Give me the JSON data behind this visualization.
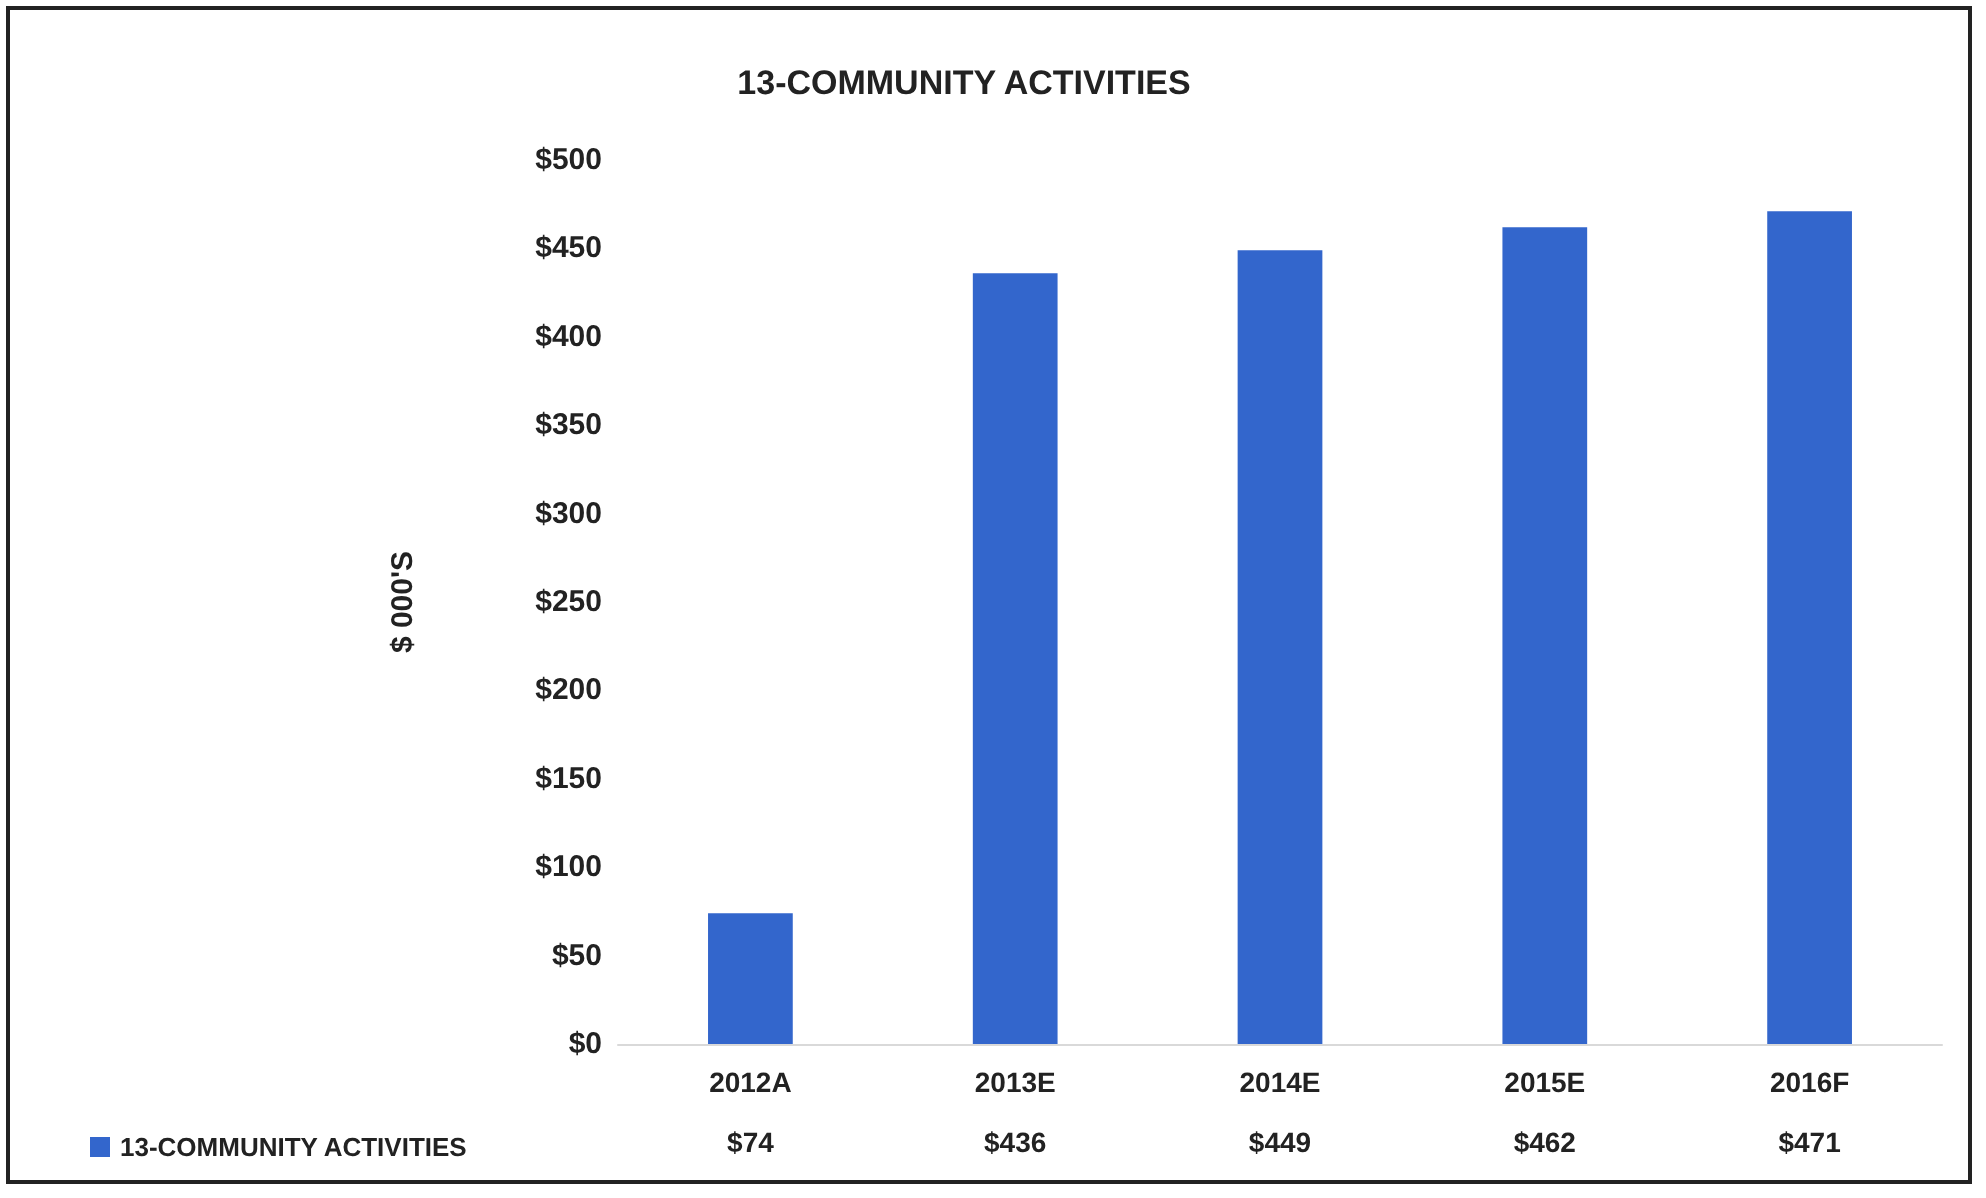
{
  "chart_data": {
    "type": "bar",
    "title": "13-COMMUNITY ACTIVITIES",
    "ylabel": "$ 000'S",
    "categories": [
      "2012A",
      "2013E",
      "2014E",
      "2015E",
      "2016F"
    ],
    "series": [
      {
        "name": "13-COMMUNITY ACTIVITIES",
        "color": "#3366cc",
        "values": [
          74,
          436,
          449,
          462,
          471
        ],
        "value_labels": [
          "$74",
          "$436",
          "$449",
          "$462",
          "$471"
        ]
      }
    ],
    "ylim": [
      0,
      500
    ],
    "yticks": [
      {
        "value": 0,
        "label": "$0"
      },
      {
        "value": 50,
        "label": "$50"
      },
      {
        "value": 100,
        "label": "$100"
      },
      {
        "value": 150,
        "label": "$150"
      },
      {
        "value": 200,
        "label": "$200"
      },
      {
        "value": 250,
        "label": "$250"
      },
      {
        "value": 300,
        "label": "$300"
      },
      {
        "value": 350,
        "label": "$350"
      },
      {
        "value": 400,
        "label": "$400"
      },
      {
        "value": 450,
        "label": "$450"
      },
      {
        "value": 500,
        "label": "$500"
      }
    ],
    "grid": false,
    "legend": "bottom left"
  }
}
